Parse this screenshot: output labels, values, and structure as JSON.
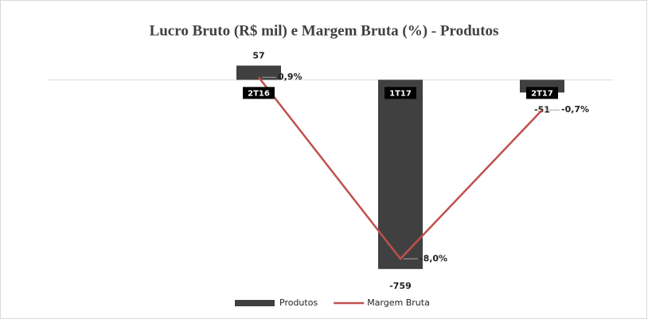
{
  "chart_data": {
    "type": "bar",
    "title": "Lucro Bruto (R$ mil) e Margem Bruta (%) - Produtos",
    "categories": [
      "2T16",
      "1T17",
      "2T17"
    ],
    "series": [
      {
        "name": "Produtos",
        "type": "bar",
        "color": "#404040",
        "values": [
          57,
          -759,
          -51
        ]
      },
      {
        "name": "Margem Bruta",
        "type": "line",
        "color": "#c0504d",
        "axis": "y2",
        "values": [
          0.9,
          -8.0,
          -0.7
        ],
        "value_labels": [
          "0,9%",
          "-8,0%",
          "-0,7%"
        ]
      }
    ],
    "ylim": [
      -800,
      100
    ],
    "y2lim": [
      -9,
      2
    ],
    "legend": "bottom"
  }
}
